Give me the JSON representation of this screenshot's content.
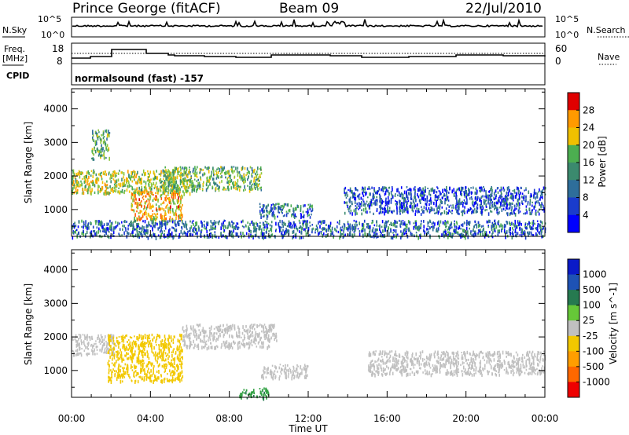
{
  "header": {
    "station": "Prince George (fitACF)",
    "beam": "Beam 09",
    "date": "22/Jul/2010"
  },
  "noise_panel": {
    "left_label": "N.Sky",
    "right_label": "N.Search",
    "left_ticks": [
      "10^5",
      "10^0"
    ],
    "right_ticks": [
      "10^5",
      "10^0"
    ]
  },
  "freq_panel": {
    "left_label_line1": "Freq.",
    "left_label_line2": "[MHz]",
    "right_label": "Nave",
    "left_ticks": [
      "18",
      "8"
    ],
    "right_ticks": [
      "60",
      "0"
    ]
  },
  "cpid_panel": {
    "label": "CPID",
    "text": "normalsound (fast) -157"
  },
  "colors": {
    "power": [
      "#0000ff",
      "#1a3ccc",
      "#2e6e9a",
      "#3b8a6e",
      "#4cae50",
      "#8cc63c",
      "#f0c000",
      "#ff9a00",
      "#ff5a00",
      "#e00000"
    ],
    "velocity": [
      "#0a1ac8",
      "#1e52b4",
      "#267a50",
      "#2ea040",
      "#66c838",
      "#c0c0c0",
      "#f2c800",
      "#ff9e00",
      "#ff6800",
      "#ee0000"
    ]
  },
  "chart_data": [
    {
      "type": "heatmap",
      "name": "power",
      "ylabel": "Slant Range [km]",
      "yticks": [
        "1000",
        "2000",
        "3000",
        "4000"
      ],
      "ylim": [
        200,
        4600
      ],
      "xlim": [
        0,
        24
      ],
      "colorbar_label": "Power [dB]",
      "colorbar_ticks": [
        "4",
        "8",
        "12",
        "16",
        "20",
        "24",
        "28"
      ],
      "colorbar_range": [
        0,
        32
      ],
      "echo_regions": [
        {
          "t0": 0.0,
          "t1": 6.0,
          "r0": 1500,
          "r1": 2200,
          "level": 18
        },
        {
          "t0": 3.0,
          "t1": 5.6,
          "r0": 700,
          "r1": 1600,
          "level": 22
        },
        {
          "t0": 1.0,
          "t1": 1.9,
          "r0": 2500,
          "r1": 3400,
          "level": 14
        },
        {
          "t0": 4.5,
          "t1": 9.6,
          "r0": 1600,
          "r1": 2300,
          "level": 15
        },
        {
          "t0": 9.5,
          "t1": 12.2,
          "r0": 800,
          "r1": 1200,
          "level": 8
        },
        {
          "t0": 13.8,
          "t1": 24.0,
          "r0": 900,
          "r1": 1700,
          "level": 6
        },
        {
          "t0": 0.0,
          "t1": 24.0,
          "r0": 200,
          "r1": 700,
          "level": 8
        }
      ]
    },
    {
      "type": "heatmap",
      "name": "velocity",
      "xlabel": "Time UT",
      "ylabel": "Slant Range [km]",
      "xticks": [
        "00:00",
        "04:00",
        "08:00",
        "12:00",
        "16:00",
        "20:00",
        "00:00"
      ],
      "yticks": [
        "1000",
        "2000",
        "3000",
        "4000"
      ],
      "ylim": [
        200,
        4600
      ],
      "xlim": [
        0,
        24
      ],
      "colorbar_label": "Velocity [m s^-1]",
      "colorbar_ticks": [
        "1000",
        "500",
        "100",
        "25",
        "-25",
        "-100",
        "-500",
        "-1000"
      ],
      "echo_regions": [
        {
          "t0": 0.0,
          "t1": 2.2,
          "r0": 1500,
          "r1": 2100,
          "velocity": 0
        },
        {
          "t0": 1.8,
          "t1": 5.6,
          "r0": 700,
          "r1": 2100,
          "velocity": -300
        },
        {
          "t0": 5.6,
          "t1": 10.4,
          "r0": 1700,
          "r1": 2400,
          "velocity": 0
        },
        {
          "t0": 9.6,
          "t1": 12.0,
          "r0": 800,
          "r1": 1200,
          "velocity": 0
        },
        {
          "t0": 15.0,
          "t1": 24.0,
          "r0": 900,
          "r1": 1600,
          "velocity": 0
        },
        {
          "t0": 8.5,
          "t1": 10.0,
          "r0": 200,
          "r1": 500,
          "velocity": 80
        }
      ]
    }
  ]
}
